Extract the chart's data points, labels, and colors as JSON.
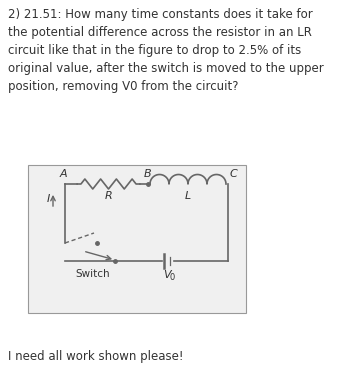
{
  "title_text": "2) 21.51: How many time constants does it take for\nthe potential difference across the resistor in an LR\ncircuit like that in the figure to drop to 2.5% of its\noriginal value, after the switch is moved to the upper\nposition, removing V0 from the circuit?",
  "footer_text": "I need all work shown please!",
  "bg_color": "#ffffff",
  "text_color": "#333333",
  "circuit_bg": "#f0f0f0",
  "circuit_border": "#999999",
  "wire_color": "#666666",
  "font_size_main": 8.5,
  "font_size_footer": 8.5,
  "font_size_label": 8.0,
  "label_A": "A",
  "label_B": "B",
  "label_C": "C",
  "label_R": "R",
  "label_L": "L",
  "label_Switch": "Switch",
  "label_V0": "V",
  "label_V0_sub": "0",
  "label_I": "I"
}
